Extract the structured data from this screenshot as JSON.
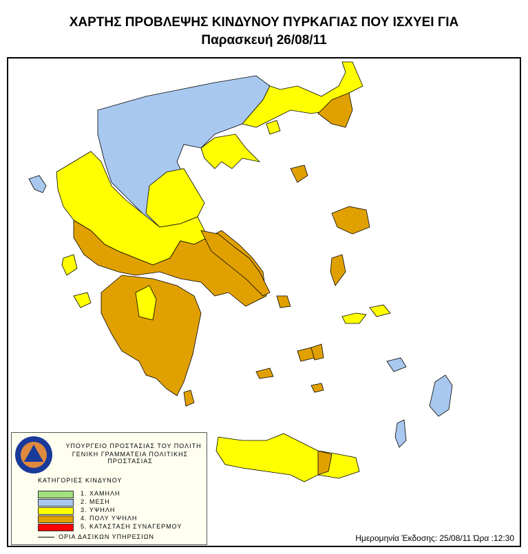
{
  "title": "ΧΑΡΤΗΣ ΠΡΟΒΛΕΨΗΣ ΚΙΝΔΥΝΟΥ ΠΥΡΚΑΓΙΑΣ ΠΟΥ ΙΣΧΥΕΙ ΓΙΑ",
  "subtitle": "Παρασκευή 26/08/11",
  "legend": {
    "org_line1": "ΥΠΟΥΡΓΕΙΟ ΠΡΟΣΤΑΣΙΑΣ ΤΟΥ ΠΟΛΙΤΗ",
    "org_line2": "ΓΕΝΙΚΗ ΓΡΑΜΜΑΤΕΙΑ ΠΟΛΙΤΙΚΗΣ ΠΡΟΣΤΑΣΙΑΣ",
    "logo_text": "ΠΟΛΙΤΙΚΗ ΠΡΟΣΤΑΣΙΑ ΕΛΛΑΔΑ",
    "heading": "ΚΑΤΗΓΟΡΙΕΣ ΚΙΝΔΥΝΟΥ",
    "categories": [
      {
        "label": "1. ΧΑΜΗΛΗ",
        "color": "#a0e080"
      },
      {
        "label": "2. ΜΕΣΗ",
        "color": "#a8c8f0"
      },
      {
        "label": "3. ΥΨΗΛΗ",
        "color": "#ffff00"
      },
      {
        "label": "4. ΠΟΛΥ ΥΨΗΛΗ",
        "color": "#e0a000"
      },
      {
        "label": "5. ΚΑΤΑΣΤΑΣΗ ΣΥΝΑΓΕΡΜΟΥ",
        "color": "#ff0000"
      }
    ],
    "boundary_label": "ΟΡΙΑ ΔΑΣΙΚΩΝ ΥΠΗΡΕΣΙΩΝ"
  },
  "issued": "Ημερομηνία Έκδοσης: 25/08/11  Ώρα :12:30"
}
